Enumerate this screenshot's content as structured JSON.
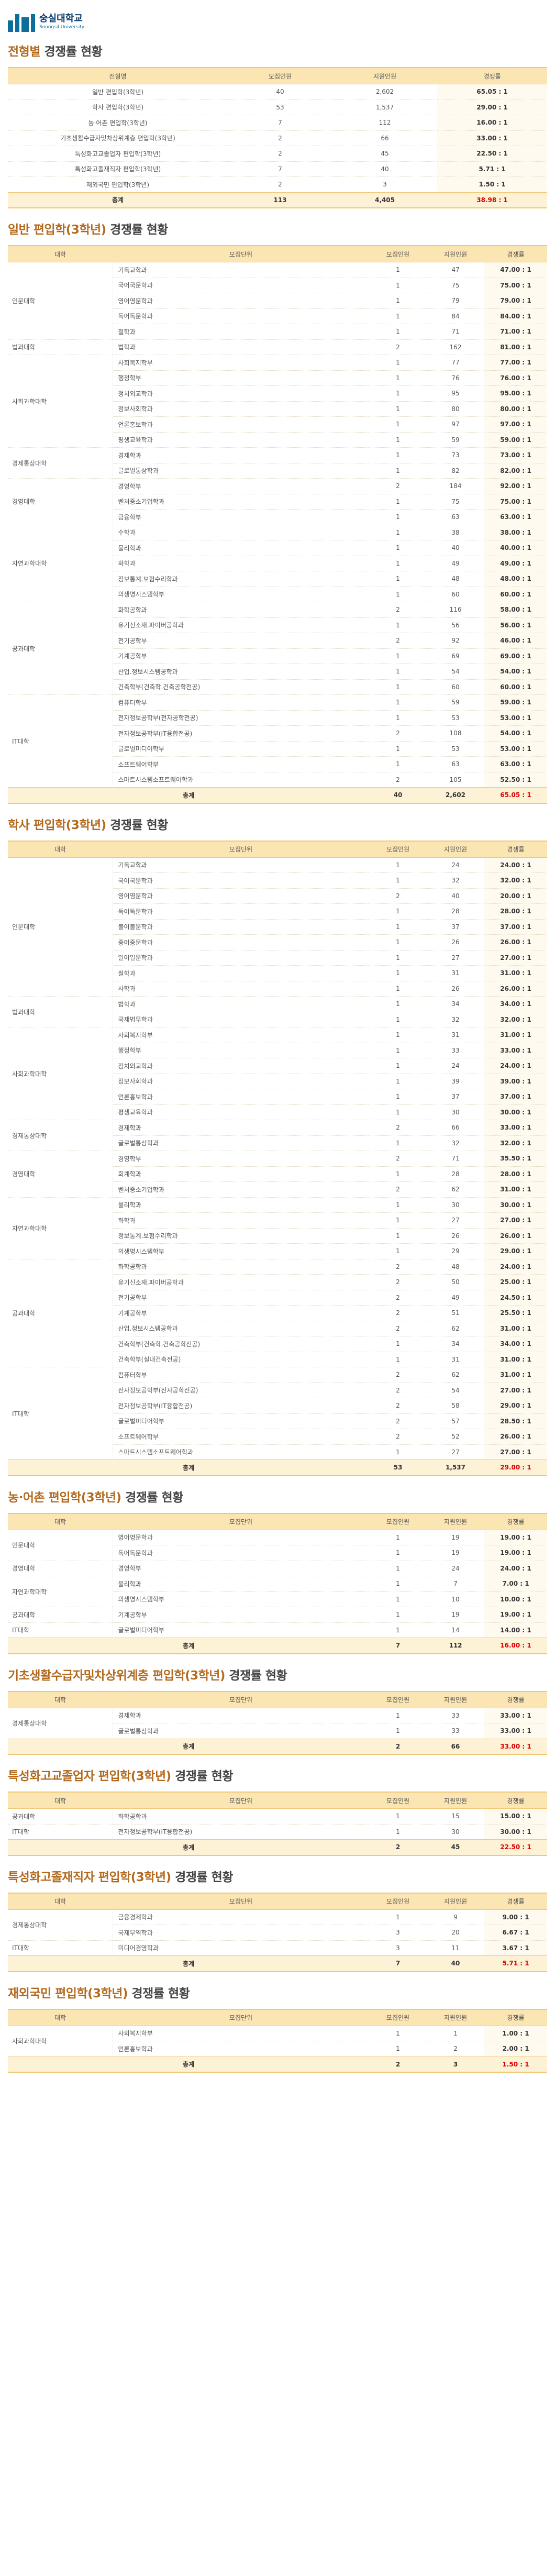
{
  "brand": {
    "name_ko": "숭실대학교",
    "name_en": "Soongsil University",
    "color": "#0d6e9e"
  },
  "sections": [
    {
      "title_plain": "전형별",
      "title_suffix": " 경쟁률 현황",
      "variant": "by_type",
      "columns": [
        "전형명",
        "모집인원",
        "지원인원",
        "경쟁률"
      ],
      "rows": [
        [
          "일반 편입학(3학년)",
          "40",
          "2,602",
          "65.05 : 1"
        ],
        [
          "학사 편입학(3학년)",
          "53",
          "1,537",
          "29.00 : 1"
        ],
        [
          "농·어촌 편입학(3학년)",
          "7",
          "112",
          "16.00 : 1"
        ],
        [
          "기초생활수급자및차상위계층 편입학(3학년)",
          "2",
          "66",
          "33.00 : 1"
        ],
        [
          "특성화고교졸업자 편입학(3학년)",
          "2",
          "45",
          "22.50 : 1"
        ],
        [
          "특성화고졸재직자 편입학(3학년)",
          "7",
          "40",
          "5.71 : 1"
        ],
        [
          "재외국민 편입학(3학년)",
          "2",
          "3",
          "1.50 : 1"
        ]
      ],
      "total": [
        "총계",
        "113",
        "4,405",
        "38.98 : 1"
      ]
    },
    {
      "title_plain": "일반 편입학(3학년)",
      "title_suffix": " 경쟁률 현황",
      "variant": "by_unit",
      "columns": [
        "대학",
        "모집단위",
        "모집인원",
        "지원인원",
        "경쟁률"
      ],
      "groups": [
        {
          "univ": "인문대학",
          "rows": [
            [
              "기독교학과",
              "1",
              "47",
              "47.00 : 1"
            ],
            [
              "국어국문학과",
              "1",
              "75",
              "75.00 : 1"
            ],
            [
              "영어영문학과",
              "1",
              "79",
              "79.00 : 1"
            ],
            [
              "독어독문학과",
              "1",
              "84",
              "84.00 : 1"
            ],
            [
              "철학과",
              "1",
              "71",
              "71.00 : 1"
            ]
          ]
        },
        {
          "univ": "법과대학",
          "rows": [
            [
              "법학과",
              "2",
              "162",
              "81.00 : 1"
            ]
          ]
        },
        {
          "univ": "사회과학대학",
          "rows": [
            [
              "사회복지학부",
              "1",
              "77",
              "77.00 : 1"
            ],
            [
              "행정학부",
              "1",
              "76",
              "76.00 : 1"
            ],
            [
              "정치외교학과",
              "1",
              "95",
              "95.00 : 1"
            ],
            [
              "정보사회학과",
              "1",
              "80",
              "80.00 : 1"
            ],
            [
              "언론홍보학과",
              "1",
              "97",
              "97.00 : 1"
            ],
            [
              "평생교육학과",
              "1",
              "59",
              "59.00 : 1"
            ]
          ]
        },
        {
          "univ": "경제통상대학",
          "rows": [
            [
              "경제학과",
              "1",
              "73",
              "73.00 : 1"
            ],
            [
              "글로벌통상학과",
              "1",
              "82",
              "82.00 : 1"
            ]
          ]
        },
        {
          "univ": "경영대학",
          "rows": [
            [
              "경영학부",
              "2",
              "184",
              "92.00 : 1"
            ],
            [
              "벤처중소기업학과",
              "1",
              "75",
              "75.00 : 1"
            ],
            [
              "금융학부",
              "1",
              "63",
              "63.00 : 1"
            ]
          ]
        },
        {
          "univ": "자연과학대학",
          "rows": [
            [
              "수학과",
              "1",
              "38",
              "38.00 : 1"
            ],
            [
              "물리학과",
              "1",
              "40",
              "40.00 : 1"
            ],
            [
              "화학과",
              "1",
              "49",
              "49.00 : 1"
            ],
            [
              "정보통계.보험수리학과",
              "1",
              "48",
              "48.00 : 1"
            ],
            [
              "의생명시스템학부",
              "1",
              "60",
              "60.00 : 1"
            ]
          ]
        },
        {
          "univ": "공과대학",
          "rows": [
            [
              "화학공학과",
              "2",
              "116",
              "58.00 : 1"
            ],
            [
              "유기신소재.파이버공학과",
              "1",
              "56",
              "56.00 : 1"
            ],
            [
              "전기공학부",
              "2",
              "92",
              "46.00 : 1"
            ],
            [
              "기계공학부",
              "1",
              "69",
              "69.00 : 1"
            ],
            [
              "산업.정보시스템공학과",
              "1",
              "54",
              "54.00 : 1"
            ],
            [
              "건축학부(건축학.건축공학전공)",
              "1",
              "60",
              "60.00 : 1"
            ]
          ]
        },
        {
          "univ": "IT대학",
          "rows": [
            [
              "컴퓨터학부",
              "1",
              "59",
              "59.00 : 1"
            ],
            [
              "전자정보공학부(전자공학전공)",
              "1",
              "53",
              "53.00 : 1"
            ],
            [
              "전자정보공학부(IT융합전공)",
              "2",
              "108",
              "54.00 : 1"
            ],
            [
              "글로벌미디어학부",
              "1",
              "53",
              "53.00 : 1"
            ],
            [
              "소프트웨어학부",
              "1",
              "63",
              "63.00 : 1"
            ],
            [
              "스마트시스템소프트웨어학과",
              "2",
              "105",
              "52.50 : 1"
            ]
          ]
        }
      ],
      "total": [
        "총계",
        "40",
        "2,602",
        "65.05 : 1"
      ]
    },
    {
      "title_plain": "학사 편입학(3학년)",
      "title_suffix": " 경쟁률 현황",
      "variant": "by_unit",
      "columns": [
        "대학",
        "모집단위",
        "모집인원",
        "지원인원",
        "경쟁률"
      ],
      "groups": [
        {
          "univ": "인문대학",
          "rows": [
            [
              "기독교학과",
              "1",
              "24",
              "24.00 : 1"
            ],
            [
              "국어국문학과",
              "1",
              "32",
              "32.00 : 1"
            ],
            [
              "영어영문학과",
              "2",
              "40",
              "20.00 : 1"
            ],
            [
              "독어독문학과",
              "1",
              "28",
              "28.00 : 1"
            ],
            [
              "불어불문학과",
              "1",
              "37",
              "37.00 : 1"
            ],
            [
              "중어중문학과",
              "1",
              "26",
              "26.00 : 1"
            ],
            [
              "일어일문학과",
              "1",
              "27",
              "27.00 : 1"
            ],
            [
              "철학과",
              "1",
              "31",
              "31.00 : 1"
            ],
            [
              "사학과",
              "1",
              "26",
              "26.00 : 1"
            ]
          ]
        },
        {
          "univ": "법과대학",
          "rows": [
            [
              "법학과",
              "1",
              "34",
              "34.00 : 1"
            ],
            [
              "국제법무학과",
              "1",
              "32",
              "32.00 : 1"
            ]
          ]
        },
        {
          "univ": "사회과학대학",
          "rows": [
            [
              "사회복지학부",
              "1",
              "31",
              "31.00 : 1"
            ],
            [
              "행정학부",
              "1",
              "33",
              "33.00 : 1"
            ],
            [
              "정치외교학과",
              "1",
              "24",
              "24.00 : 1"
            ],
            [
              "정보사회학과",
              "1",
              "39",
              "39.00 : 1"
            ],
            [
              "언론홍보학과",
              "1",
              "37",
              "37.00 : 1"
            ],
            [
              "평생교육학과",
              "1",
              "30",
              "30.00 : 1"
            ]
          ]
        },
        {
          "univ": "경제통상대학",
          "rows": [
            [
              "경제학과",
              "2",
              "66",
              "33.00 : 1"
            ],
            [
              "글로벌통상학과",
              "1",
              "32",
              "32.00 : 1"
            ]
          ]
        },
        {
          "univ": "경영대학",
          "rows": [
            [
              "경영학부",
              "2",
              "71",
              "35.50 : 1"
            ],
            [
              "회계학과",
              "1",
              "28",
              "28.00 : 1"
            ],
            [
              "벤처중소기업학과",
              "2",
              "62",
              "31.00 : 1"
            ]
          ]
        },
        {
          "univ": "자연과학대학",
          "rows": [
            [
              "물리학과",
              "1",
              "30",
              "30.00 : 1"
            ],
            [
              "화학과",
              "1",
              "27",
              "27.00 : 1"
            ],
            [
              "정보통계.보험수리학과",
              "1",
              "26",
              "26.00 : 1"
            ],
            [
              "의생명시스템학부",
              "1",
              "29",
              "29.00 : 1"
            ]
          ]
        },
        {
          "univ": "공과대학",
          "rows": [
            [
              "화학공학과",
              "2",
              "48",
              "24.00 : 1"
            ],
            [
              "유기신소재.파이버공학과",
              "2",
              "50",
              "25.00 : 1"
            ],
            [
              "전기공학부",
              "2",
              "49",
              "24.50 : 1"
            ],
            [
              "기계공학부",
              "2",
              "51",
              "25.50 : 1"
            ],
            [
              "산업.정보시스템공학과",
              "2",
              "62",
              "31.00 : 1"
            ],
            [
              "건축학부(건축학.건축공학전공)",
              "1",
              "34",
              "34.00 : 1"
            ],
            [
              "건축학부(실내건축전공)",
              "1",
              "31",
              "31.00 : 1"
            ]
          ]
        },
        {
          "univ": "IT대학",
          "rows": [
            [
              "컴퓨터학부",
              "2",
              "62",
              "31.00 : 1"
            ],
            [
              "전자정보공학부(전자공학전공)",
              "2",
              "54",
              "27.00 : 1"
            ],
            [
              "전자정보공학부(IT융합전공)",
              "2",
              "58",
              "29.00 : 1"
            ],
            [
              "글로벌미디어학부",
              "2",
              "57",
              "28.50 : 1"
            ],
            [
              "소프트웨어학부",
              "2",
              "52",
              "26.00 : 1"
            ],
            [
              "스마트시스템소프트웨어학과",
              "1",
              "27",
              "27.00 : 1"
            ]
          ]
        }
      ],
      "total": [
        "총계",
        "53",
        "1,537",
        "29.00 : 1"
      ]
    },
    {
      "title_plain": "농·어촌 편입학(3학년)",
      "title_suffix": " 경쟁률 현황",
      "variant": "by_unit",
      "columns": [
        "대학",
        "모집단위",
        "모집인원",
        "지원인원",
        "경쟁률"
      ],
      "groups": [
        {
          "univ": "인문대학",
          "rows": [
            [
              "영어영문학과",
              "1",
              "19",
              "19.00 : 1"
            ],
            [
              "독어독문학과",
              "1",
              "19",
              "19.00 : 1"
            ]
          ]
        },
        {
          "univ": "경영대학",
          "rows": [
            [
              "경영학부",
              "1",
              "24",
              "24.00 : 1"
            ]
          ]
        },
        {
          "univ": "자연과학대학",
          "rows": [
            [
              "물리학과",
              "1",
              "7",
              "7.00 : 1"
            ],
            [
              "의생명시스템학부",
              "1",
              "10",
              "10.00 : 1"
            ]
          ]
        },
        {
          "univ": "공과대학",
          "rows": [
            [
              "기계공학부",
              "1",
              "19",
              "19.00 : 1"
            ]
          ]
        },
        {
          "univ": "IT대학",
          "rows": [
            [
              "글로벌미디어학부",
              "1",
              "14",
              "14.00 : 1"
            ]
          ]
        }
      ],
      "total": [
        "총계",
        "7",
        "112",
        "16.00 : 1"
      ]
    },
    {
      "title_plain": "기초생활수급자및차상위계층 편입학(3학년)",
      "title_suffix": " 경쟁률 현황",
      "variant": "by_unit",
      "columns": [
        "대학",
        "모집단위",
        "모집인원",
        "지원인원",
        "경쟁률"
      ],
      "groups": [
        {
          "univ": "경제통상대학",
          "rows": [
            [
              "경제학과",
              "1",
              "33",
              "33.00 : 1"
            ],
            [
              "글로벌통상학과",
              "1",
              "33",
              "33.00 : 1"
            ]
          ]
        }
      ],
      "total": [
        "총계",
        "2",
        "66",
        "33.00 : 1"
      ]
    },
    {
      "title_plain": "특성화고교졸업자 편입학(3학년)",
      "title_suffix": " 경쟁률 현황",
      "variant": "by_unit",
      "columns": [
        "대학",
        "모집단위",
        "모집인원",
        "지원인원",
        "경쟁률"
      ],
      "groups": [
        {
          "univ": "공과대학",
          "rows": [
            [
              "화학공학과",
              "1",
              "15",
              "15.00 : 1"
            ]
          ]
        },
        {
          "univ": "IT대학",
          "rows": [
            [
              "전자정보공학부(IT융합전공)",
              "1",
              "30",
              "30.00 : 1"
            ]
          ]
        }
      ],
      "total": [
        "총계",
        "2",
        "45",
        "22.50 : 1"
      ]
    },
    {
      "title_plain": "특성화고졸재직자 편입학(3학년)",
      "title_suffix": " 경쟁률 현황",
      "variant": "by_unit",
      "columns": [
        "대학",
        "모집단위",
        "모집인원",
        "지원인원",
        "경쟁률"
      ],
      "groups": [
        {
          "univ": "경제통상대학",
          "rows": [
            [
              "금융경제학과",
              "1",
              "9",
              "9.00 : 1"
            ],
            [
              "국제무역학과",
              "3",
              "20",
              "6.67 : 1"
            ]
          ]
        },
        {
          "univ": "IT대학",
          "rows": [
            [
              "미디어경영학과",
              "3",
              "11",
              "3.67 : 1"
            ]
          ]
        }
      ],
      "total": [
        "총계",
        "7",
        "40",
        "5.71 : 1"
      ]
    },
    {
      "title_plain": "재외국민 편입학(3학년)",
      "title_suffix": " 경쟁률 현황",
      "variant": "by_unit",
      "columns": [
        "대학",
        "모집단위",
        "모집인원",
        "지원인원",
        "경쟁률"
      ],
      "groups": [
        {
          "univ": "사회과학대학",
          "rows": [
            [
              "사회복지학부",
              "1",
              "1",
              "1.00 : 1"
            ],
            [
              "언론홍보학과",
              "1",
              "2",
              "2.00 : 1"
            ]
          ]
        }
      ],
      "total": [
        "총계",
        "2",
        "3",
        "1.50 : 1"
      ]
    }
  ]
}
